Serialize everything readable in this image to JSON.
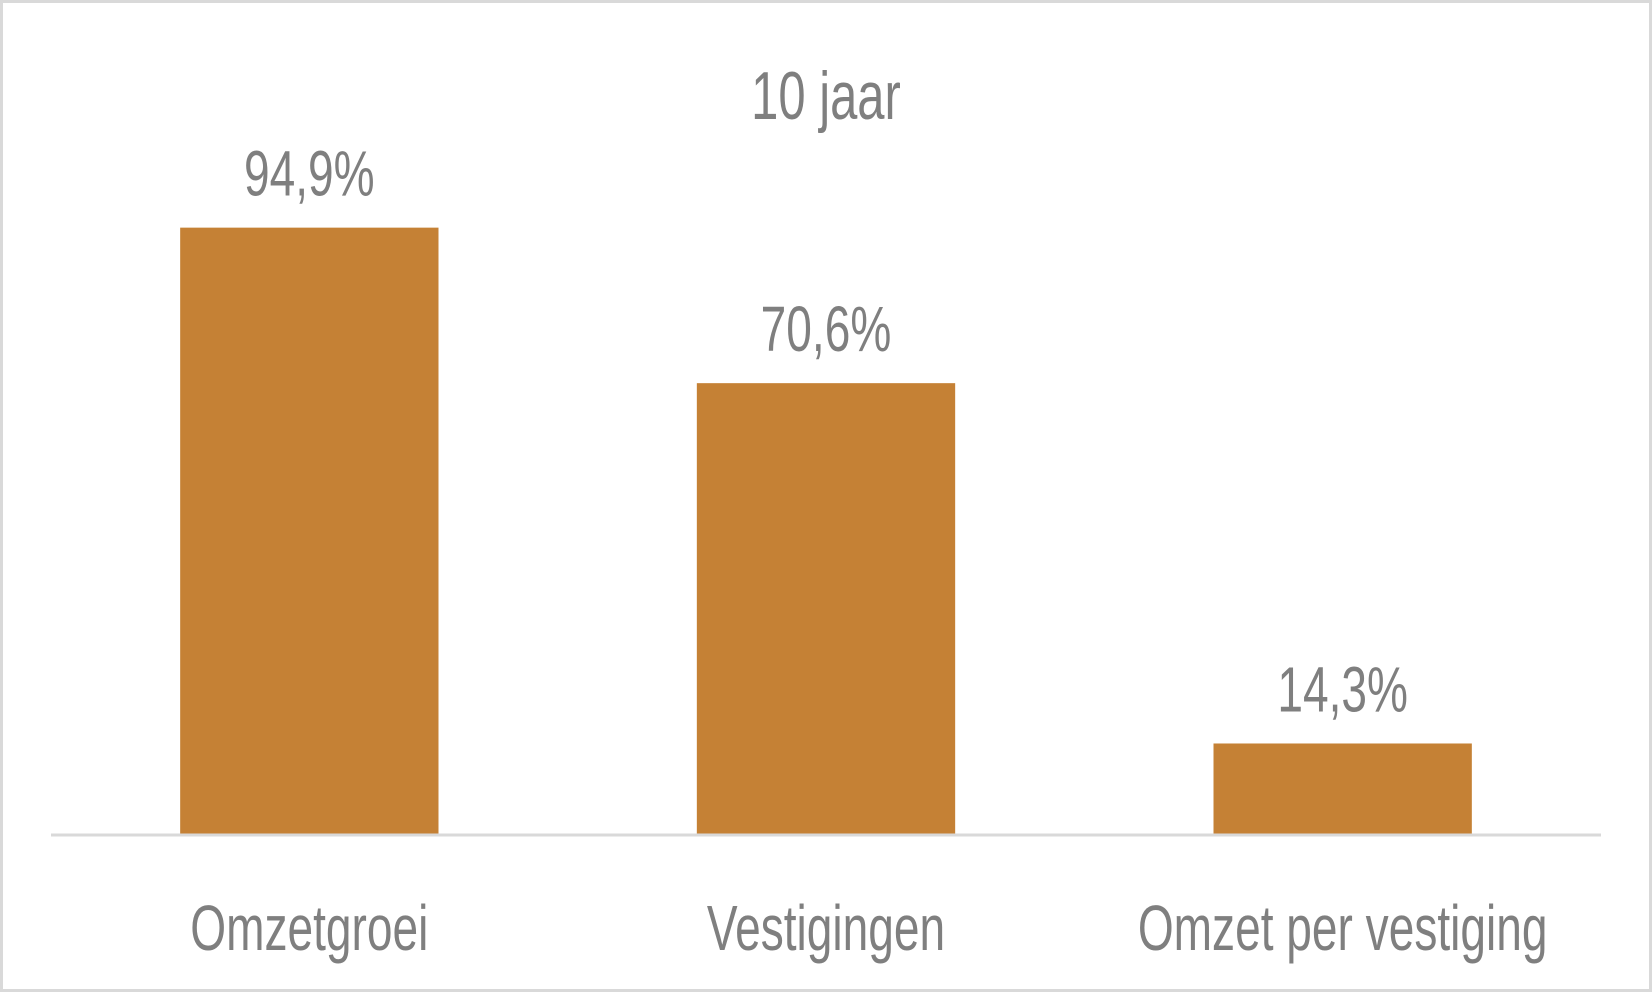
{
  "chart_data": {
    "type": "bar",
    "title": "10 jaar",
    "categories": [
      "Omzetgroei",
      "Vestigingen",
      "Omzet per vestiging"
    ],
    "values": [
      94.9,
      70.6,
      14.3
    ],
    "data_labels": [
      "94,9%",
      "70,6%",
      "14,3%"
    ],
    "ylim": [
      0,
      100
    ],
    "grid": false,
    "legend": "none",
    "colors": {
      "bar": "#C58135",
      "text": "#7F7F7F",
      "axis": "#D9D9D9",
      "background": "#FFFFFF"
    }
  }
}
